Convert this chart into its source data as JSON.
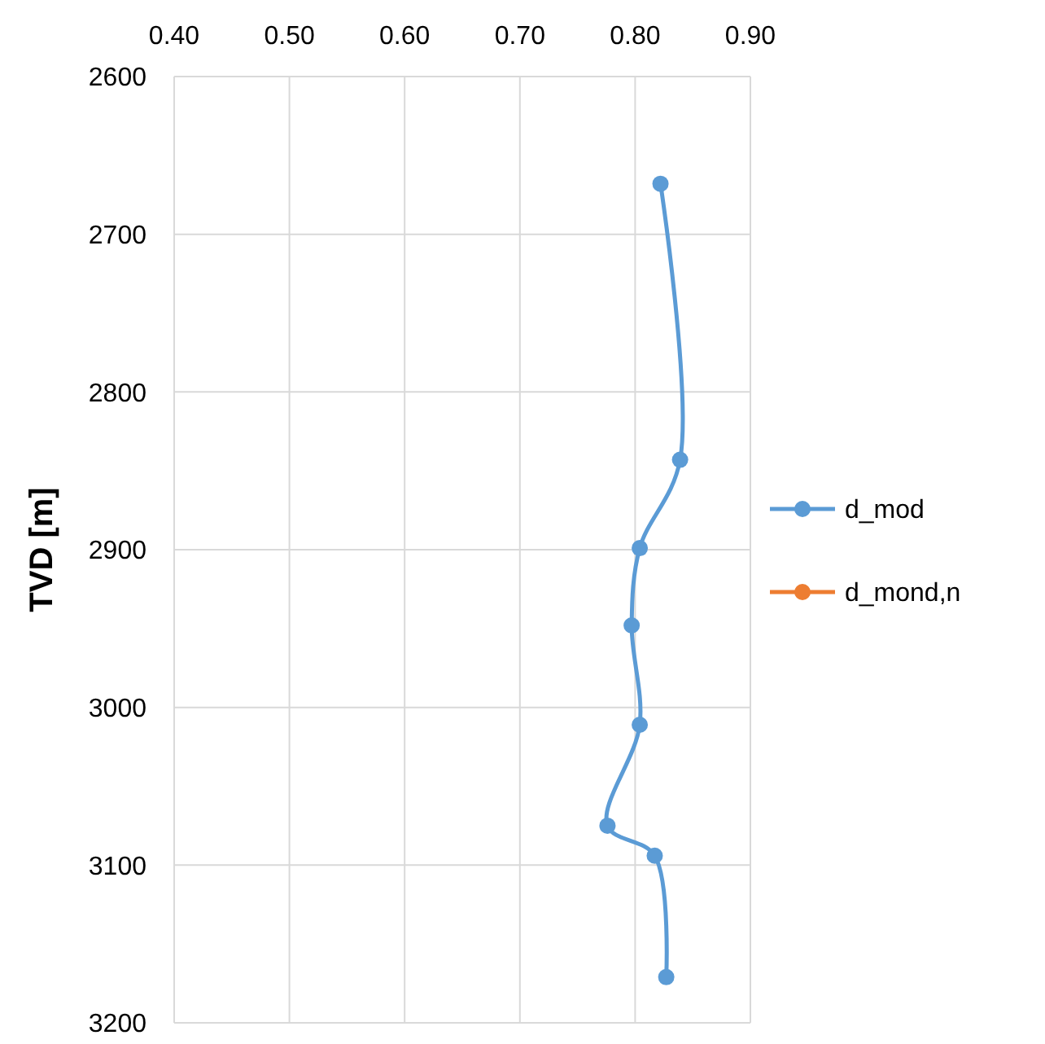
{
  "chart_data": {
    "type": "line",
    "ylabel": "TVD [m]",
    "xlim": [
      0.4,
      0.9
    ],
    "xticks": [
      {
        "value": 0.4,
        "label": "0.40"
      },
      {
        "value": 0.5,
        "label": "0.50"
      },
      {
        "value": 0.6,
        "label": "0.60"
      },
      {
        "value": 0.7,
        "label": "0.70"
      },
      {
        "value": 0.8,
        "label": "0.80"
      },
      {
        "value": 0.9,
        "label": "0.90"
      }
    ],
    "ylim": [
      3200,
      2600
    ],
    "yticks": [
      2600,
      2700,
      2800,
      2900,
      3000,
      3100,
      3200
    ],
    "grid": true,
    "legend": "right",
    "marker": "circle",
    "line_style": "solid",
    "series": [
      {
        "name": "d_mod",
        "color": "#5b9bd5",
        "x": [
          0.822,
          0.839,
          0.804,
          0.797,
          0.804,
          0.776,
          0.817,
          0.827
        ],
        "values": [
          2668,
          2843,
          2899,
          2948,
          3011,
          3075,
          3094,
          3171
        ]
      },
      {
        "name": "d_mond,n",
        "color": "#ed7d31"
      }
    ]
  }
}
